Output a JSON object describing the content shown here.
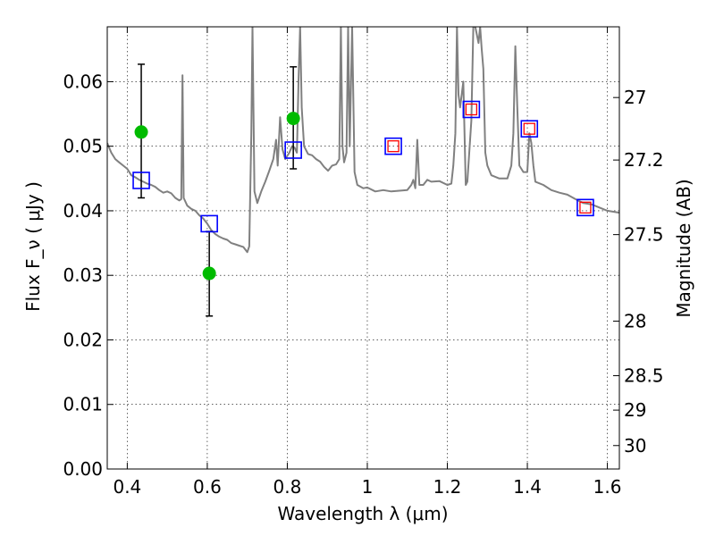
{
  "chart_data": {
    "type": "scatter",
    "title": "",
    "xlabel": "Wavelength  λ (μm)",
    "ylabel": "Flux  F_ν  ( μJy )",
    "ylabel_right": "Magnitude (AB)",
    "xlim": [
      0.35,
      1.63
    ],
    "ylim": [
      0.0,
      0.0685
    ],
    "grid": true,
    "x_ticks": [
      {
        "value": 0.4,
        "label": "0.4"
      },
      {
        "value": 0.6,
        "label": "0.6"
      },
      {
        "value": 0.8,
        "label": "0.8"
      },
      {
        "value": 1.0,
        "label": "1"
      },
      {
        "value": 1.2,
        "label": "1.2"
      },
      {
        "value": 1.4,
        "label": "1.4"
      },
      {
        "value": 1.6,
        "label": "1.6"
      }
    ],
    "y_ticks": [
      {
        "value": 0.0,
        "label": "0.00"
      },
      {
        "value": 0.01,
        "label": "0.01"
      },
      {
        "value": 0.02,
        "label": "0.02"
      },
      {
        "value": 0.03,
        "label": "0.03"
      },
      {
        "value": 0.04,
        "label": "0.04"
      },
      {
        "value": 0.05,
        "label": "0.05"
      },
      {
        "value": 0.06,
        "label": "0.06"
      }
    ],
    "y_right_ticks": [
      {
        "value": 27.0,
        "label": "27"
      },
      {
        "value": 27.2,
        "label": "27.2"
      },
      {
        "value": 27.5,
        "label": "27.5"
      },
      {
        "value": 28.0,
        "label": "28"
      },
      {
        "value": 28.5,
        "label": "28.5"
      },
      {
        "value": 29.0,
        "label": "29"
      },
      {
        "value": 30.0,
        "label": "30"
      }
    ],
    "series": [
      {
        "style": "line",
        "color": "#808080",
        "points": [
          [
            0.35,
            0.0505
          ],
          [
            0.36,
            0.049
          ],
          [
            0.37,
            0.048
          ],
          [
            0.38,
            0.0475
          ],
          [
            0.39,
            0.047
          ],
          [
            0.4,
            0.0465
          ],
          [
            0.41,
            0.0455
          ],
          [
            0.42,
            0.0452
          ],
          [
            0.43,
            0.0448
          ],
          [
            0.44,
            0.0445
          ],
          [
            0.45,
            0.0442
          ],
          [
            0.46,
            0.044
          ],
          [
            0.47,
            0.0437
          ],
          [
            0.48,
            0.0432
          ],
          [
            0.49,
            0.0428
          ],
          [
            0.5,
            0.043
          ],
          [
            0.51,
            0.0427
          ],
          [
            0.52,
            0.042
          ],
          [
            0.53,
            0.0416
          ],
          [
            0.535,
            0.0418
          ],
          [
            0.538,
            0.061
          ],
          [
            0.541,
            0.042
          ],
          [
            0.55,
            0.0408
          ],
          [
            0.56,
            0.0403
          ],
          [
            0.57,
            0.04
          ],
          [
            0.58,
            0.0393
          ],
          [
            0.59,
            0.0388
          ],
          [
            0.6,
            0.038
          ],
          [
            0.61,
            0.037
          ],
          [
            0.62,
            0.0364
          ],
          [
            0.63,
            0.036
          ],
          [
            0.64,
            0.0357
          ],
          [
            0.65,
            0.0355
          ],
          [
            0.66,
            0.035
          ],
          [
            0.67,
            0.0348
          ],
          [
            0.68,
            0.0346
          ],
          [
            0.69,
            0.0344
          ],
          [
            0.7,
            0.0336
          ],
          [
            0.705,
            0.0345
          ],
          [
            0.71,
            0.052
          ],
          [
            0.713,
            0.0685
          ],
          [
            0.718,
            0.043
          ],
          [
            0.725,
            0.0412
          ],
          [
            0.735,
            0.043
          ],
          [
            0.745,
            0.0445
          ],
          [
            0.755,
            0.0462
          ],
          [
            0.765,
            0.048
          ],
          [
            0.772,
            0.051
          ],
          [
            0.776,
            0.047
          ],
          [
            0.782,
            0.0545
          ],
          [
            0.788,
            0.0495
          ],
          [
            0.795,
            0.048
          ],
          [
            0.805,
            0.049
          ],
          [
            0.812,
            0.05
          ],
          [
            0.818,
            0.0498
          ],
          [
            0.824,
            0.049
          ],
          [
            0.828,
            0.06
          ],
          [
            0.832,
            0.0685
          ],
          [
            0.836,
            0.056
          ],
          [
            0.842,
            0.05
          ],
          [
            0.852,
            0.0488
          ],
          [
            0.862,
            0.0486
          ],
          [
            0.872,
            0.048
          ],
          [
            0.882,
            0.0476
          ],
          [
            0.892,
            0.0468
          ],
          [
            0.902,
            0.0462
          ],
          [
            0.912,
            0.047
          ],
          [
            0.922,
            0.0472
          ],
          [
            0.93,
            0.048
          ],
          [
            0.934,
            0.0685
          ],
          [
            0.938,
            0.05
          ],
          [
            0.942,
            0.0475
          ],
          [
            0.948,
            0.049
          ],
          [
            0.952,
            0.0685
          ],
          [
            0.956,
            0.05
          ],
          [
            0.962,
            0.0685
          ],
          [
            0.968,
            0.046
          ],
          [
            0.975,
            0.044
          ],
          [
            0.99,
            0.0435
          ],
          [
            1.0,
            0.0436
          ],
          [
            1.02,
            0.043
          ],
          [
            1.04,
            0.0432
          ],
          [
            1.06,
            0.043
          ],
          [
            1.08,
            0.0431
          ],
          [
            1.1,
            0.0432
          ],
          [
            1.11,
            0.044
          ],
          [
            1.115,
            0.0448
          ],
          [
            1.12,
            0.0435
          ],
          [
            1.125,
            0.051
          ],
          [
            1.13,
            0.044
          ],
          [
            1.14,
            0.044
          ],
          [
            1.15,
            0.0448
          ],
          [
            1.16,
            0.0445
          ],
          [
            1.18,
            0.0446
          ],
          [
            1.2,
            0.044
          ],
          [
            1.21,
            0.0442
          ],
          [
            1.215,
            0.047
          ],
          [
            1.22,
            0.052
          ],
          [
            1.224,
            0.0685
          ],
          [
            1.228,
            0.058
          ],
          [
            1.232,
            0.056
          ],
          [
            1.236,
            0.058
          ],
          [
            1.24,
            0.06
          ],
          [
            1.246,
            0.044
          ],
          [
            1.25,
            0.0445
          ],
          [
            1.26,
            0.054
          ],
          [
            1.265,
            0.0685
          ],
          [
            1.27,
            0.0685
          ],
          [
            1.278,
            0.066
          ],
          [
            1.282,
            0.0685
          ],
          [
            1.286,
            0.065
          ],
          [
            1.29,
            0.062
          ],
          [
            1.295,
            0.049
          ],
          [
            1.3,
            0.047
          ],
          [
            1.31,
            0.0455
          ],
          [
            1.33,
            0.045
          ],
          [
            1.35,
            0.045
          ],
          [
            1.36,
            0.047
          ],
          [
            1.365,
            0.052
          ],
          [
            1.37,
            0.0655
          ],
          [
            1.375,
            0.056
          ],
          [
            1.38,
            0.047
          ],
          [
            1.39,
            0.046
          ],
          [
            1.4,
            0.046
          ],
          [
            1.405,
            0.052
          ],
          [
            1.41,
            0.0505
          ],
          [
            1.415,
            0.047
          ],
          [
            1.42,
            0.0445
          ],
          [
            1.44,
            0.044
          ],
          [
            1.46,
            0.0432
          ],
          [
            1.48,
            0.0428
          ],
          [
            1.5,
            0.0425
          ],
          [
            1.52,
            0.0418
          ],
          [
            1.54,
            0.0412
          ],
          [
            1.56,
            0.041
          ],
          [
            1.58,
            0.0405
          ],
          [
            1.6,
            0.04
          ],
          [
            1.62,
            0.0398
          ],
          [
            1.63,
            0.0397
          ]
        ]
      },
      {
        "style": "marker-circle",
        "color": "#00bb00",
        "points": [
          [
            0.435,
            0.0522
          ],
          [
            0.605,
            0.0303
          ],
          [
            0.815,
            0.0543
          ]
        ],
        "errors": [
          [
            0.042,
            0.0627
          ],
          [
            0.0237,
            0.0368
          ],
          [
            0.0465,
            0.0623
          ]
        ]
      },
      {
        "style": "marker-square",
        "color": "#0000ff",
        "points": [
          [
            0.435,
            0.0447
          ],
          [
            0.605,
            0.038
          ],
          [
            0.815,
            0.0494
          ],
          [
            1.065,
            0.05
          ],
          [
            1.26,
            0.0557
          ],
          [
            1.405,
            0.0527
          ],
          [
            1.545,
            0.0405
          ]
        ]
      },
      {
        "style": "marker-square-small",
        "color": "#ff0000",
        "points": [
          [
            1.065,
            0.05
          ],
          [
            1.26,
            0.0557
          ],
          [
            1.405,
            0.0527
          ],
          [
            1.545,
            0.0405
          ]
        ]
      }
    ]
  }
}
